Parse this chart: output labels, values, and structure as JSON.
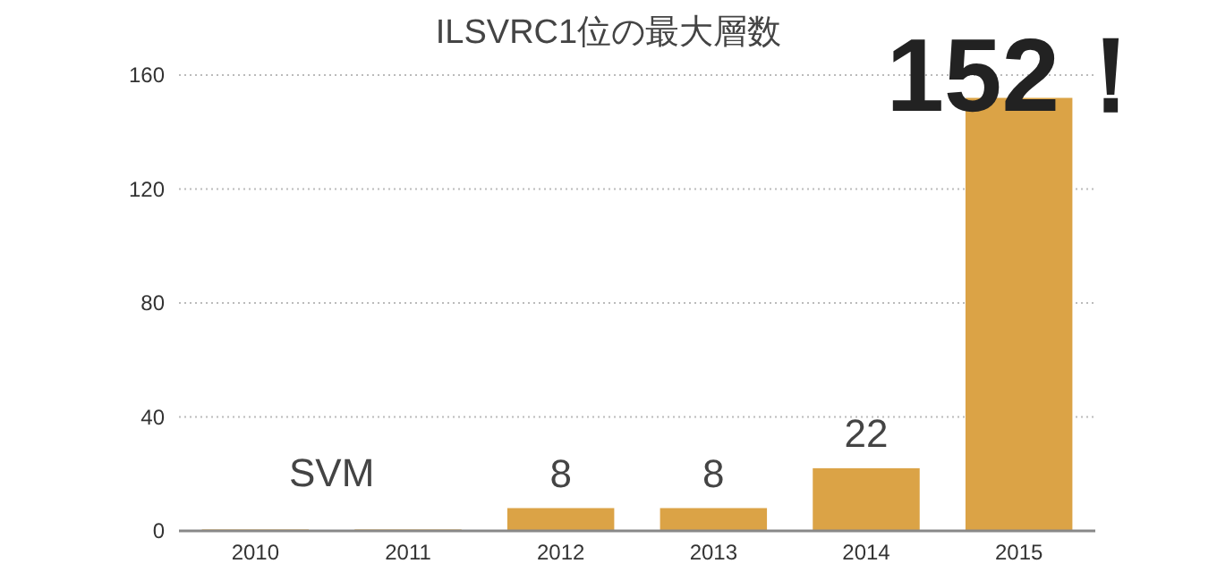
{
  "chart_data": {
    "type": "bar",
    "title": "ILSVRC1位の最大層数",
    "categories": [
      "2010",
      "2011",
      "2012",
      "2013",
      "2014",
      "2015"
    ],
    "values": [
      0.5,
      0.5,
      8,
      8,
      22,
      152
    ],
    "value_labels": [
      null,
      null,
      "8",
      "8",
      "22",
      "152！"
    ],
    "color": "#dba346",
    "ylim": [
      0,
      160
    ],
    "yticks": [
      0,
      40,
      80,
      120,
      160
    ],
    "grid": "y",
    "annotations": [
      "SVM"
    ]
  }
}
